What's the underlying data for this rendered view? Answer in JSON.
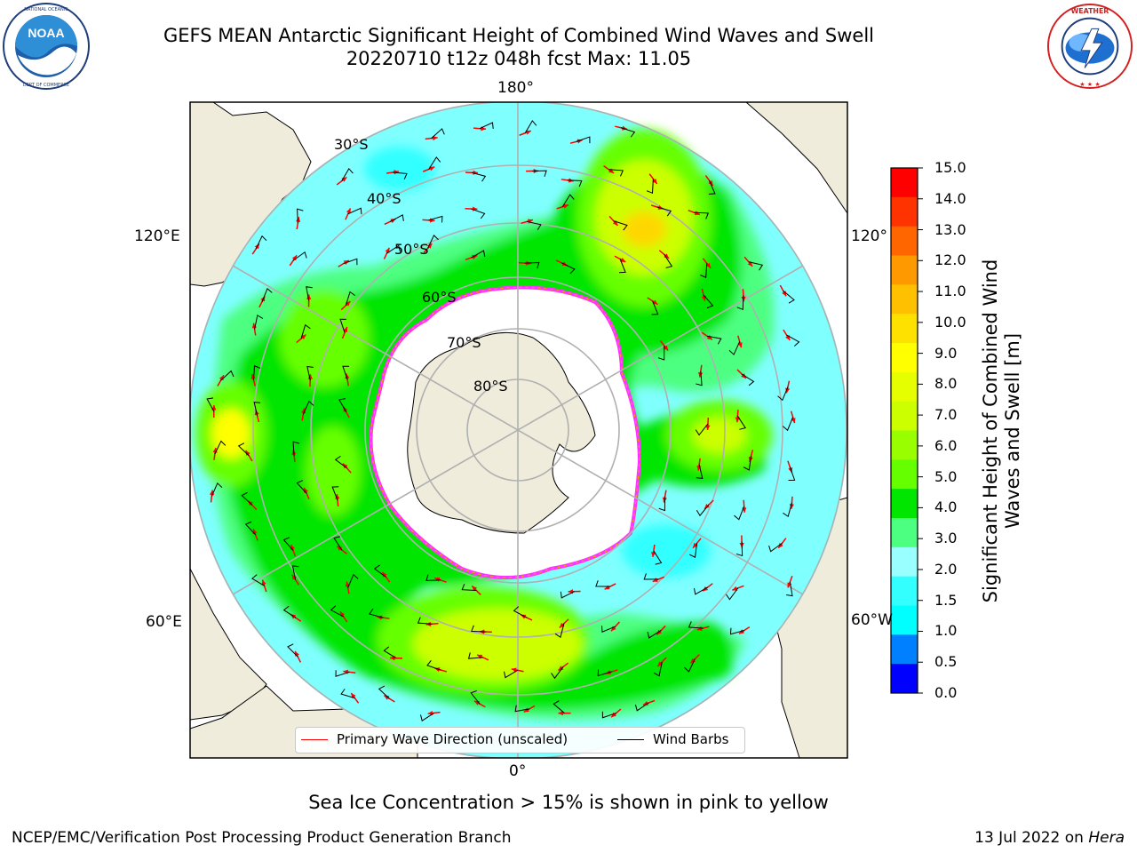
{
  "title": {
    "line1": "GEFS MEAN Antarctic Significant Height of Combined Wind Waves and Swell",
    "line2": "20220710 t12z 048h fcst   Max: 11.05"
  },
  "logos": {
    "left": {
      "text": "NOAA",
      "ring_text": "NATIONAL OCEANIC AND ATMOSPHERIC ADMINISTRATION · U.S. DEPARTMENT OF COMMERCE",
      "icon": "noaa-logo"
    },
    "right": {
      "ring_text": "NATIONAL WEATHER SERVICE",
      "icon": "nws-logo"
    }
  },
  "map": {
    "projection": "south-polar-stereographic",
    "lon_labels": {
      "top": "180°",
      "left_upper": "120°E",
      "right_upper": "120°",
      "left_lower": "60°E",
      "right_lower": "60°W",
      "bottom": "0°"
    },
    "lat_labels": [
      "30°S",
      "40°S",
      "50°S",
      "60°S",
      "70°S",
      "80°S"
    ],
    "colors": {
      "ocean_wave_field": [
        "#4dff80",
        "#00e600",
        "#66ff00",
        "#ccff00",
        "#ffff00",
        "#ffd700"
      ],
      "calm_swell": [
        "#80ffff",
        "#33ffff"
      ],
      "land": "#efecdc",
      "sea_ice_edge": [
        "#ff33ff",
        "#ff9900",
        "#ffff66"
      ],
      "wave_direction_arrow": "#ff0000",
      "wind_barb": "#000000",
      "gridline": "#b0b0b0"
    }
  },
  "colorbar": {
    "label": "Significant Height of Combined Wind Waves and Swell [m]",
    "ticks": [
      "15.0",
      "14.0",
      "13.0",
      "12.0",
      "11.0",
      "10.0",
      "9.0",
      "8.0",
      "7.0",
      "6.0",
      "5.0",
      "4.0",
      "3.0",
      "2.0",
      "1.5",
      "1.0",
      "0.5",
      "0.0"
    ],
    "colors": [
      "#ff0000",
      "#ff3300",
      "#ff6600",
      "#ff9900",
      "#ffc000",
      "#ffe100",
      "#ffff00",
      "#e6ff00",
      "#ccff00",
      "#99ff00",
      "#66ff00",
      "#00e600",
      "#4dff80",
      "#99ffff",
      "#33ffff",
      "#00ffff",
      "#0080ff",
      "#0000ff"
    ]
  },
  "legend": {
    "wave_direction": "Primary Wave Direction (unscaled)",
    "wind_barbs": "Wind Barbs"
  },
  "subcaption": "Sea Ice Concentration > 15% is shown in pink to yellow",
  "footer": {
    "left": "NCEP/EMC/Verification Post Processing Product Generation Branch",
    "date": "13 Jul 2022 on",
    "machine": "Hera"
  }
}
